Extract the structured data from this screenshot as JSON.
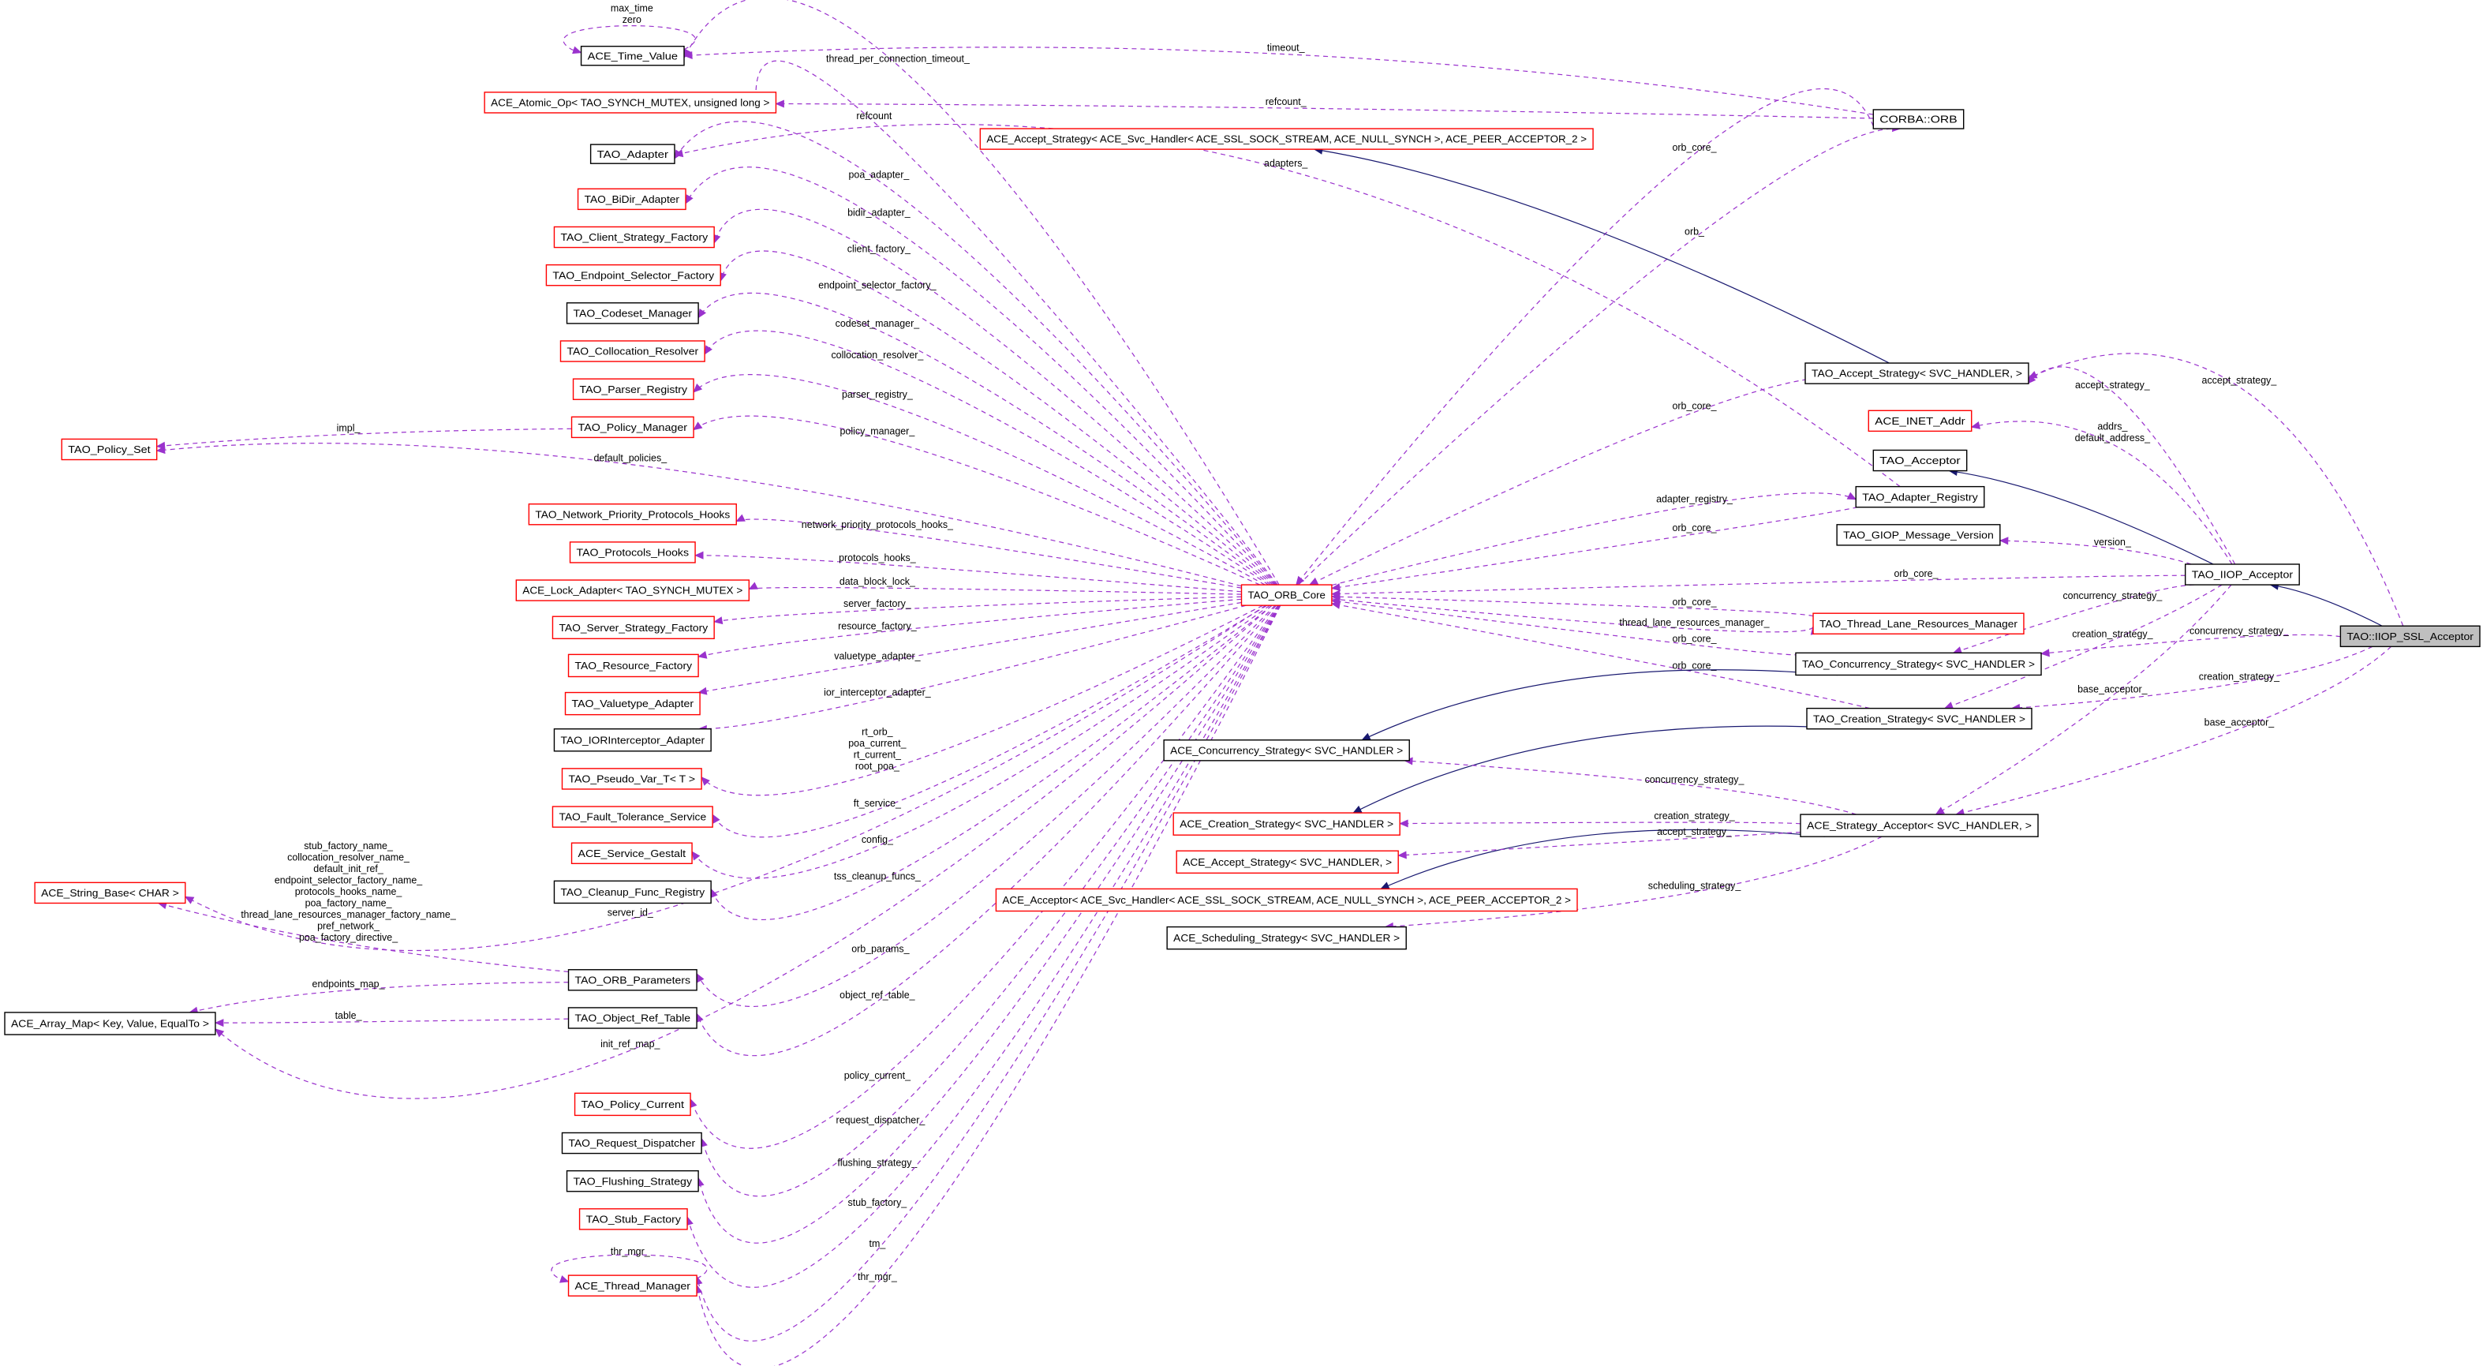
{
  "colors": {
    "member_edge": "#9a32cd",
    "inherit_edge": "#191970",
    "documented_border": "#000000",
    "undocumented_border": "#ff0000",
    "focus_fill": "#bfbfbf"
  },
  "nodes": [
    {
      "id": "tv",
      "label": "ACE_Time_Value",
      "border": "#000000"
    },
    {
      "id": "atom",
      "label": "ACE_Atomic_Op< TAO_SYNCH_MUTEX, unsigned long >",
      "border": "#ff0000"
    },
    {
      "id": "adapter",
      "label": "TAO_Adapter",
      "border": "#000000"
    },
    {
      "id": "bidir",
      "label": "TAO_BiDir_Adapter",
      "border": "#ff0000"
    },
    {
      "id": "csf",
      "label": "TAO_Client_Strategy_Factory",
      "border": "#ff0000"
    },
    {
      "id": "esf",
      "label": "TAO_Endpoint_Selector_Factory",
      "border": "#ff0000"
    },
    {
      "id": "codeset",
      "label": "TAO_Codeset_Manager",
      "border": "#000000"
    },
    {
      "id": "colloc",
      "label": "TAO_Collocation_Resolver",
      "border": "#ff0000"
    },
    {
      "id": "parser",
      "label": "TAO_Parser_Registry",
      "border": "#ff0000"
    },
    {
      "id": "polmgr",
      "label": "TAO_Policy_Manager",
      "border": "#ff0000"
    },
    {
      "id": "polset",
      "label": "TAO_Policy_Set",
      "border": "#ff0000"
    },
    {
      "id": "nph",
      "label": "TAO_Network_Priority_Protocols_Hooks",
      "border": "#ff0000"
    },
    {
      "id": "ph",
      "label": "TAO_Protocols_Hooks",
      "border": "#ff0000"
    },
    {
      "id": "lock",
      "label": "ACE_Lock_Adapter< TAO_SYNCH_MUTEX >",
      "border": "#ff0000"
    },
    {
      "id": "ssf",
      "label": "TAO_Server_Strategy_Factory",
      "border": "#ff0000"
    },
    {
      "id": "rf",
      "label": "TAO_Resource_Factory",
      "border": "#ff0000"
    },
    {
      "id": "vta",
      "label": "TAO_Valuetype_Adapter",
      "border": "#ff0000"
    },
    {
      "id": "iora",
      "label": "TAO_IORInterceptor_Adapter",
      "border": "#000000"
    },
    {
      "id": "pseudo",
      "label": "TAO_Pseudo_Var_T< T >",
      "border": "#ff0000"
    },
    {
      "id": "ft",
      "label": "TAO_Fault_Tolerance_Service",
      "border": "#ff0000"
    },
    {
      "id": "gestalt",
      "label": "ACE_Service_Gestalt",
      "border": "#ff0000"
    },
    {
      "id": "cleanup",
      "label": "TAO_Cleanup_Func_Registry",
      "border": "#000000"
    },
    {
      "id": "strbase",
      "label": "ACE_String_Base< CHAR >",
      "border": "#ff0000"
    },
    {
      "id": "orbparams",
      "label": "TAO_ORB_Parameters",
      "border": "#000000"
    },
    {
      "id": "ort",
      "label": "TAO_Object_Ref_Table",
      "border": "#000000"
    },
    {
      "id": "arraymap",
      "label": "ACE_Array_Map< Key, Value, EqualTo >",
      "border": "#000000"
    },
    {
      "id": "polcur",
      "label": "TAO_Policy_Current",
      "border": "#ff0000"
    },
    {
      "id": "reqdisp",
      "label": "TAO_Request_Dispatcher",
      "border": "#000000"
    },
    {
      "id": "flush",
      "label": "TAO_Flushing_Strategy",
      "border": "#000000"
    },
    {
      "id": "stubf",
      "label": "TAO_Stub_Factory",
      "border": "#ff0000"
    },
    {
      "id": "thrmgr",
      "label": "ACE_Thread_Manager",
      "border": "#ff0000"
    },
    {
      "id": "orb",
      "label": "CORBA::ORB",
      "border": "#000000"
    },
    {
      "id": "aceacc",
      "label": "ACE_Accept_Strategy< ACE_Svc_Handler< ACE_SSL_SOCK_STREAM, ACE_NULL_SYNCH >, ACE_PEER_ACCEPTOR_2 >",
      "border": "#ff0000"
    },
    {
      "id": "taoacc",
      "label": "TAO_Accept_Strategy< SVC_HANDLER, >",
      "border": "#000000"
    },
    {
      "id": "inet",
      "label": "ACE_INET_Addr",
      "border": "#ff0000"
    },
    {
      "id": "acceptor",
      "label": "TAO_Acceptor",
      "border": "#000000"
    },
    {
      "id": "adreg",
      "label": "TAO_Adapter_Registry",
      "border": "#000000"
    },
    {
      "id": "giop",
      "label": "TAO_GIOP_Message_Version",
      "border": "#000000"
    },
    {
      "id": "iiop",
      "label": "TAO_IIOP_Acceptor",
      "border": "#000000"
    },
    {
      "id": "core",
      "label": "TAO_ORB_Core",
      "border": "#ff0000"
    },
    {
      "id": "tlrm",
      "label": "TAO_Thread_Lane_Resources_Manager",
      "border": "#ff0000"
    },
    {
      "id": "ssl",
      "label": "TAO::IIOP_SSL_Acceptor",
      "border": "#000000"
    },
    {
      "id": "taoconc",
      "label": "TAO_Concurrency_Strategy< SVC_HANDLER >",
      "border": "#000000"
    },
    {
      "id": "taocreat",
      "label": "TAO_Creation_Strategy< SVC_HANDLER >",
      "border": "#000000"
    },
    {
      "id": "aceconc",
      "label": "ACE_Concurrency_Strategy< SVC_HANDLER >",
      "border": "#000000"
    },
    {
      "id": "acecreat",
      "label": "ACE_Creation_Strategy< SVC_HANDLER >",
      "border": "#ff0000"
    },
    {
      "id": "stratacc",
      "label": "ACE_Strategy_Acceptor< SVC_HANDLER, >",
      "border": "#000000"
    },
    {
      "id": "aceaccstrat",
      "label": "ACE_Accept_Strategy< SVC_HANDLER, >",
      "border": "#ff0000"
    },
    {
      "id": "aceacceptor",
      "label": "ACE_Acceptor< ACE_Svc_Handler< ACE_SSL_SOCK_STREAM, ACE_NULL_SYNCH >, ACE_PEER_ACCEPTOR_2 >",
      "border": "#ff0000"
    },
    {
      "id": "sched",
      "label": "ACE_Scheduling_Strategy< SVC_HANDLER >",
      "border": "#000000"
    }
  ],
  "edges": [
    {
      "from": "tv",
      "to": "tv",
      "style": "dashed",
      "label": [
        "max_time",
        "zero"
      ]
    },
    {
      "from": "core",
      "to": "tv",
      "style": "dashed",
      "label": [
        "thread_per_connection_timeout_"
      ]
    },
    {
      "from": "orb",
      "to": "tv",
      "style": "dashed",
      "label": [
        "timeout_"
      ]
    },
    {
      "from": "orb",
      "to": "atom",
      "style": "dashed",
      "label": [
        "refcount_"
      ]
    },
    {
      "from": "core",
      "to": "atom",
      "style": "dashed",
      "label": [
        "refcount"
      ]
    },
    {
      "from": "adreg",
      "to": "adapter",
      "style": "dashed",
      "label": [
        "adapters_"
      ]
    },
    {
      "from": "core",
      "to": "adapter",
      "style": "dashed",
      "label": [
        "poa_adapter_"
      ]
    },
    {
      "from": "core",
      "to": "bidir",
      "style": "dashed",
      "label": [
        "bidir_adapter_"
      ]
    },
    {
      "from": "core",
      "to": "csf",
      "style": "dashed",
      "label": [
        "client_factory_"
      ]
    },
    {
      "from": "core",
      "to": "esf",
      "style": "dashed",
      "label": [
        "endpoint_selector_factory_"
      ]
    },
    {
      "from": "core",
      "to": "codeset",
      "style": "dashed",
      "label": [
        "codeset_manager_"
      ]
    },
    {
      "from": "core",
      "to": "colloc",
      "style": "dashed",
      "label": [
        "collocation_resolver_"
      ]
    },
    {
      "from": "core",
      "to": "parser",
      "style": "dashed",
      "label": [
        "parser_registry_"
      ]
    },
    {
      "from": "core",
      "to": "polmgr",
      "style": "dashed",
      "label": [
        "policy_manager_"
      ]
    },
    {
      "from": "polmgr",
      "to": "polset",
      "style": "dashed",
      "label": [
        "impl_"
      ]
    },
    {
      "from": "core",
      "to": "polset",
      "style": "dashed",
      "label": [
        "default_policies_"
      ]
    },
    {
      "from": "core",
      "to": "nph",
      "style": "dashed",
      "label": [
        "network_priority_protocols_hooks_"
      ]
    },
    {
      "from": "core",
      "to": "ph",
      "style": "dashed",
      "label": [
        "protocols_hooks_"
      ]
    },
    {
      "from": "core",
      "to": "lock",
      "style": "dashed",
      "label": [
        "data_block_lock_"
      ]
    },
    {
      "from": "core",
      "to": "ssf",
      "style": "dashed",
      "label": [
        "server_factory_"
      ]
    },
    {
      "from": "core",
      "to": "rf",
      "style": "dashed",
      "label": [
        "resource_factory_"
      ]
    },
    {
      "from": "core",
      "to": "vta",
      "style": "dashed",
      "label": [
        "valuetype_adapter_"
      ]
    },
    {
      "from": "core",
      "to": "iora",
      "style": "dashed",
      "label": [
        "ior_interceptor_adapter_"
      ]
    },
    {
      "from": "core",
      "to": "pseudo",
      "style": "dashed",
      "label": [
        "rt_orb_",
        "poa_current_",
        "rt_current_",
        "root_poa_"
      ]
    },
    {
      "from": "core",
      "to": "ft",
      "style": "dashed",
      "label": [
        "ft_service_"
      ]
    },
    {
      "from": "core",
      "to": "gestalt",
      "style": "dashed",
      "label": [
        "config_"
      ]
    },
    {
      "from": "core",
      "to": "cleanup",
      "style": "dashed",
      "label": [
        "tss_cleanup_funcs_"
      ]
    },
    {
      "from": "core",
      "to": "strbase",
      "style": "dashed",
      "label": [
        "server_id_"
      ]
    },
    {
      "from": "orbparams",
      "to": "strbase",
      "style": "dashed",
      "label": [
        "stub_factory_name_",
        "collocation_resolver_name_",
        "default_init_ref_",
        "endpoint_selector_factory_name_",
        "protocols_hooks_name_",
        "poa_factory_name_",
        "thread_lane_resources_manager_factory_name_",
        "pref_network_",
        "poa_factory_directive_"
      ]
    },
    {
      "from": "core",
      "to": "orbparams",
      "style": "dashed",
      "label": [
        "orb_params_"
      ]
    },
    {
      "from": "orbparams",
      "to": "arraymap",
      "style": "dashed",
      "label": [
        "endpoints_map_"
      ]
    },
    {
      "from": "ort",
      "to": "arraymap",
      "style": "dashed",
      "label": [
        "table_"
      ]
    },
    {
      "from": "core",
      "to": "ort",
      "style": "dashed",
      "label": [
        "object_ref_table_"
      ]
    },
    {
      "from": "core",
      "to": "arraymap",
      "style": "dashed",
      "label": [
        "init_ref_map_"
      ]
    },
    {
      "from": "core",
      "to": "polcur",
      "style": "dashed",
      "label": [
        "policy_current_"
      ]
    },
    {
      "from": "core",
      "to": "reqdisp",
      "style": "dashed",
      "label": [
        "request_dispatcher_"
      ]
    },
    {
      "from": "core",
      "to": "flush",
      "style": "dashed",
      "label": [
        "flushing_strategy_"
      ]
    },
    {
      "from": "core",
      "to": "stubf",
      "style": "dashed",
      "label": [
        "stub_factory_"
      ]
    },
    {
      "from": "core",
      "to": "thrmgr",
      "style": "dashed",
      "label": [
        "tm_"
      ]
    },
    {
      "from": "thrmgr",
      "to": "thrmgr",
      "style": "dashed",
      "label": [
        "thr_mgr_"
      ]
    },
    {
      "from": "core",
      "to": "thrmgr",
      "style": "dashed",
      "label": [
        "thr_mgr_"
      ]
    },
    {
      "from": "orb",
      "to": "core",
      "style": "dashed",
      "label": [
        "orb_core_"
      ]
    },
    {
      "from": "core",
      "to": "orb",
      "style": "dashed",
      "label": [
        "orb_"
      ]
    },
    {
      "from": "taoacc",
      "to": "aceacc",
      "style": "solid",
      "label": []
    },
    {
      "from": "taoacc",
      "to": "core",
      "style": "dashed",
      "label": [
        "orb_core_"
      ]
    },
    {
      "from": "core",
      "to": "adreg",
      "style": "dashed",
      "label": [
        "adapter_registry_"
      ]
    },
    {
      "from": "adreg",
      "to": "core",
      "style": "dashed",
      "label": [
        "orb_core_"
      ]
    },
    {
      "from": "iiop",
      "to": "core",
      "style": "dashed",
      "label": [
        "orb_core_"
      ]
    },
    {
      "from": "tlrm",
      "to": "core",
      "style": "dashed",
      "label": [
        "orb_core_"
      ]
    },
    {
      "from": "core",
      "to": "tlrm",
      "style": "dashed",
      "label": [
        "thread_lane_resources_manager_"
      ]
    },
    {
      "from": "taoconc",
      "to": "core",
      "style": "dashed",
      "label": [
        "orb_core_"
      ]
    },
    {
      "from": "taocreat",
      "to": "core",
      "style": "dashed",
      "label": [
        "orb_core_"
      ]
    },
    {
      "from": "iiop",
      "to": "taoacc",
      "style": "dashed",
      "label": [
        "accept_strategy_"
      ]
    },
    {
      "from": "ssl",
      "to": "taoacc",
      "style": "dashed",
      "label": [
        "accept_strategy_"
      ]
    },
    {
      "from": "iiop",
      "to": "inet",
      "style": "dashed",
      "label": [
        "addrs_",
        "default_address_"
      ]
    },
    {
      "from": "iiop",
      "to": "acceptor",
      "style": "solid",
      "label": []
    },
    {
      "from": "iiop",
      "to": "giop",
      "style": "dashed",
      "label": [
        "version_"
      ]
    },
    {
      "from": "ssl",
      "to": "iiop",
      "style": "solid",
      "label": []
    },
    {
      "from": "iiop",
      "to": "taoconc",
      "style": "dashed",
      "label": [
        "concurrency_strategy_"
      ]
    },
    {
      "from": "iiop",
      "to": "taocreat",
      "style": "dashed",
      "label": [
        "creation_strategy_"
      ]
    },
    {
      "from": "iiop",
      "to": "stratacc",
      "style": "dashed",
      "label": [
        "base_acceptor_"
      ]
    },
    {
      "from": "ssl",
      "to": "taoconc",
      "style": "dashed",
      "label": [
        "concurrency_strategy_"
      ]
    },
    {
      "from": "ssl",
      "to": "taocreat",
      "style": "dashed",
      "label": [
        "creation_strategy_"
      ]
    },
    {
      "from": "ssl",
      "to": "stratacc",
      "style": "dashed",
      "label": [
        "base_acceptor_"
      ]
    },
    {
      "from": "taoconc",
      "to": "aceconc",
      "style": "solid",
      "label": []
    },
    {
      "from": "taocreat",
      "to": "acecreat",
      "style": "solid",
      "label": []
    },
    {
      "from": "stratacc",
      "to": "aceacceptor",
      "style": "solid",
      "label": []
    },
    {
      "from": "stratacc",
      "to": "aceconc",
      "style": "dashed",
      "label": [
        "concurrency_strategy_"
      ]
    },
    {
      "from": "stratacc",
      "to": "acecreat",
      "style": "dashed",
      "label": [
        "creation_strategy_"
      ]
    },
    {
      "from": "stratacc",
      "to": "aceaccstrat",
      "style": "dashed",
      "label": [
        "accept_strategy_"
      ]
    },
    {
      "from": "stratacc",
      "to": "sched",
      "style": "dashed",
      "label": [
        "scheduling_strategy_"
      ]
    }
  ]
}
